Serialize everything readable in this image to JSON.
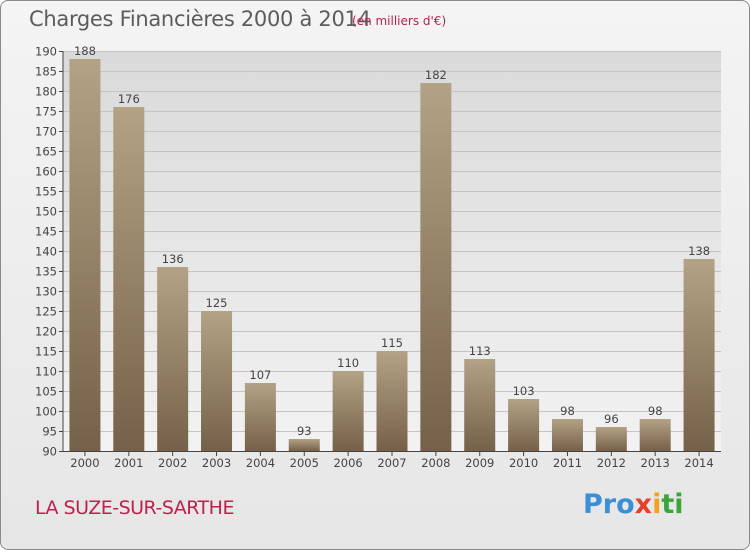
{
  "title": "Charges Financières 2000 à 2014",
  "subtitle": "(en milliers d'€)",
  "place": "LA SUZE-SUR-SARTHE",
  "logo": [
    "Pro",
    "x",
    "i",
    "ti"
  ],
  "colors": {
    "bar_light": "#b3a285",
    "bar_dark": "#756149",
    "accent": "#c0204a",
    "title": "#5c5c5c"
  },
  "chart_data": {
    "type": "bar",
    "title": "Charges Financières 2000 à 2014",
    "subtitle": "(en milliers d'€)",
    "categories": [
      "2000",
      "2001",
      "2002",
      "2003",
      "2004",
      "2005",
      "2006",
      "2007",
      "2008",
      "2009",
      "2010",
      "2011",
      "2012",
      "2013",
      "2014"
    ],
    "values": [
      188,
      176,
      136,
      125,
      107,
      93,
      110,
      115,
      182,
      113,
      103,
      98,
      96,
      98,
      138
    ],
    "ylim": [
      90,
      190
    ],
    "yticks": [
      90,
      95,
      100,
      105,
      110,
      115,
      120,
      125,
      130,
      135,
      140,
      145,
      150,
      155,
      160,
      165,
      170,
      175,
      180,
      185,
      190
    ],
    "grid": true,
    "data_labels": true
  }
}
